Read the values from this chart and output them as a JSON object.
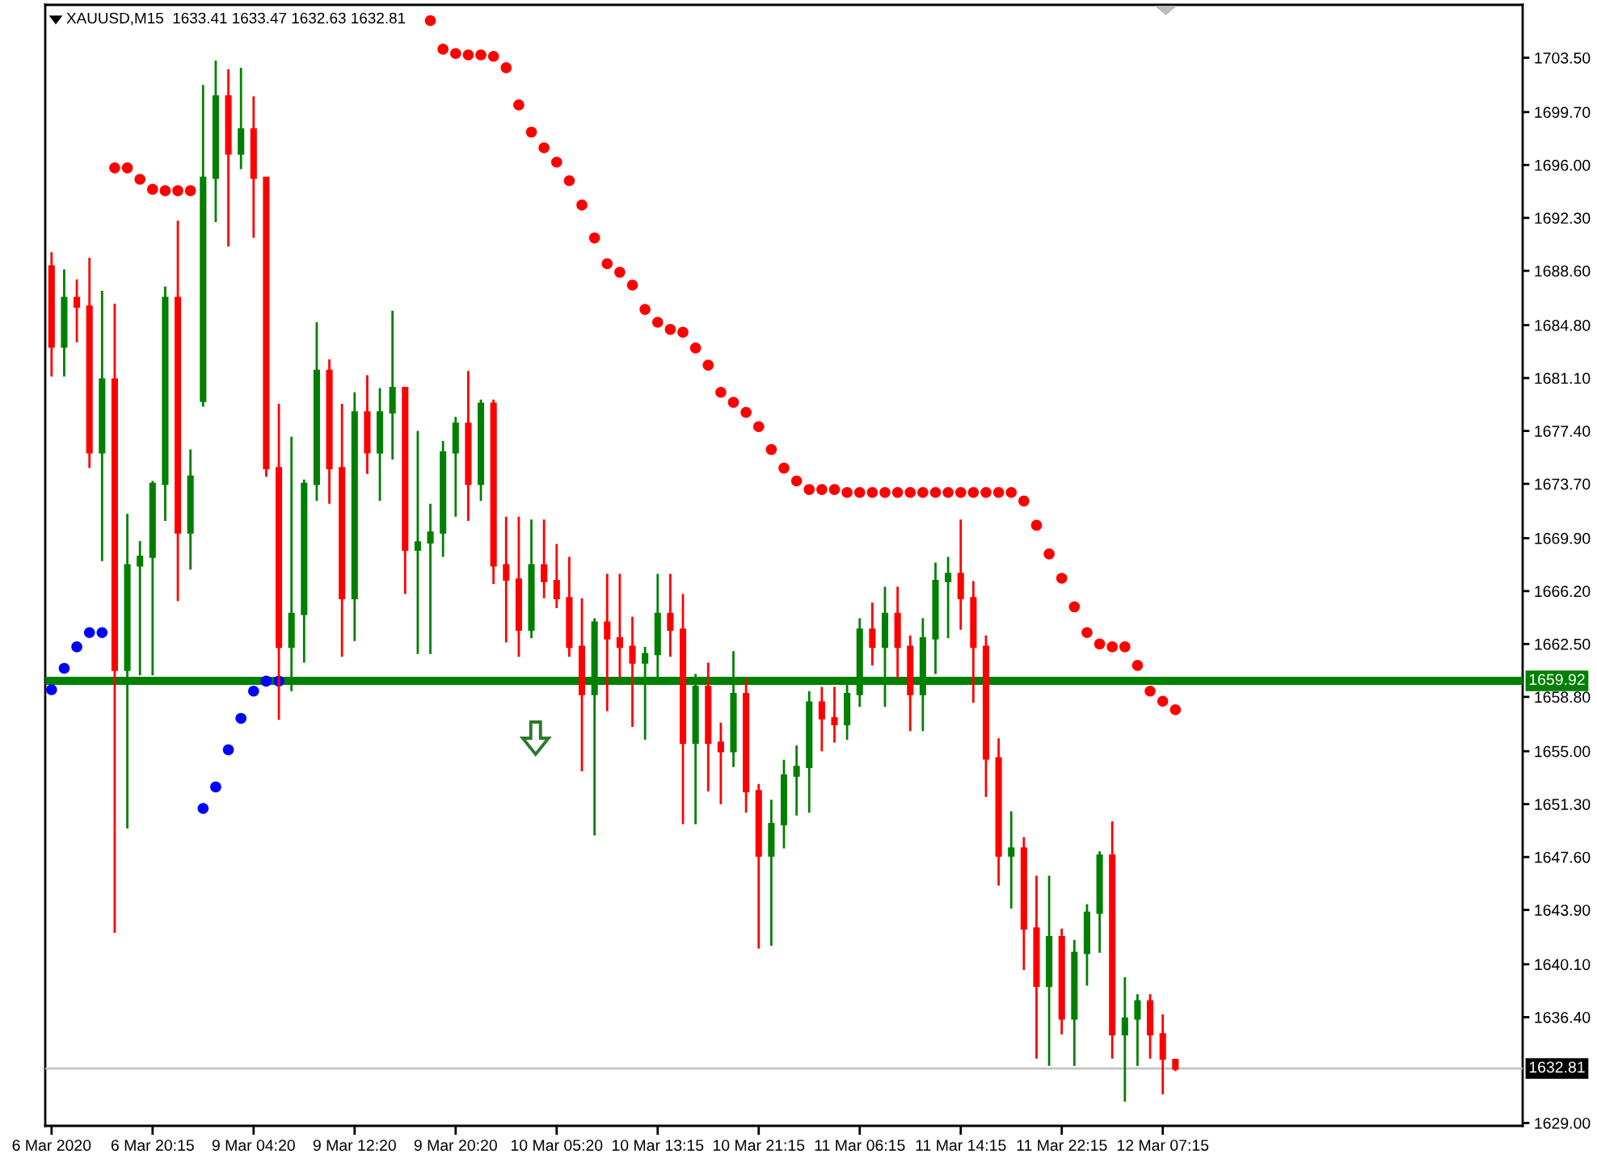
{
  "chart_data": {
    "type": "candlestick",
    "title": "XAUUSD,M15  1633.41 1633.47 1632.63 1632.81",
    "categories": [
      "6 Mar 2020",
      null,
      null,
      null,
      null,
      null,
      null,
      null,
      "6 Mar 20:15",
      null,
      null,
      null,
      null,
      null,
      null,
      null,
      "9 Mar 04:20",
      null,
      null,
      null,
      null,
      null,
      null,
      null,
      "9 Mar 12:20",
      null,
      null,
      null,
      null,
      null,
      null,
      null,
      "9 Mar 20:20",
      null,
      null,
      null,
      null,
      null,
      null,
      null,
      "10 Mar 05:20",
      null,
      null,
      null,
      null,
      null,
      null,
      null,
      "10 Mar 13:15",
      null,
      null,
      null,
      null,
      null,
      null,
      null,
      "10 Mar 21:15",
      null,
      null,
      null,
      null,
      null,
      null,
      null,
      "11 Mar 06:15",
      null,
      null,
      null,
      null,
      null,
      null,
      null,
      "11 Mar 14:15",
      null,
      null,
      null,
      null,
      null,
      null,
      null,
      "11 Mar 22:15",
      null,
      null,
      null,
      null,
      null,
      null,
      null,
      "12 Mar 07:15",
      null,
      null,
      null,
      null,
      null,
      null,
      null,
      null,
      null,
      null,
      null,
      null,
      null,
      null,
      null,
      null,
      null,
      null,
      null,
      null,
      null,
      null,
      null,
      null,
      null,
      null,
      null,
      null
    ],
    "ohlc": [
      [
        1688.9,
        1689.9,
        1681.2,
        1683.3
      ],
      [
        1683.3,
        1688.7,
        1681.2,
        1686.7
      ],
      [
        1686.7,
        1688.0,
        1683.6,
        1686.1
      ],
      [
        1686.1,
        1689.5,
        1674.8,
        1675.9
      ],
      [
        1675.9,
        1687.2,
        1668.3,
        1681.0
      ],
      [
        1681.0,
        1686.3,
        1642.3,
        1660.7
      ],
      [
        1660.7,
        1671.6,
        1649.6,
        1668.0
      ],
      [
        1668.0,
        1669.7,
        1660.3,
        1668.6
      ],
      [
        1668.6,
        1673.9,
        1660.3,
        1673.7
      ],
      [
        1673.7,
        1687.5,
        1671.1,
        1686.7
      ],
      [
        1686.7,
        1692.1,
        1665.5,
        1670.3
      ],
      [
        1670.3,
        1676.1,
        1667.7,
        1674.2
      ],
      [
        1679.5,
        1701.6,
        1679.1,
        1695.1
      ],
      [
        1695.1,
        1703.3,
        1692.0,
        1700.8
      ],
      [
        1700.8,
        1702.7,
        1690.3,
        1696.8
      ],
      [
        1696.8,
        1702.8,
        1695.7,
        1698.5
      ],
      [
        1698.5,
        1700.8,
        1690.9,
        1695.1
      ],
      [
        1695.1,
        1695.1,
        1674.2,
        1674.8
      ],
      [
        1674.8,
        1679.3,
        1657.2,
        1662.3
      ],
      [
        1662.3,
        1677.0,
        1659.2,
        1664.6
      ],
      [
        1664.6,
        1674.0,
        1661.2,
        1673.7
      ],
      [
        1673.7,
        1685.0,
        1672.5,
        1681.6
      ],
      [
        1681.6,
        1682.4,
        1672.3,
        1674.8
      ],
      [
        1674.8,
        1679.3,
        1661.6,
        1665.7
      ],
      [
        1665.7,
        1680.1,
        1662.7,
        1678.7
      ],
      [
        1678.7,
        1681.3,
        1674.4,
        1675.9
      ],
      [
        1675.9,
        1680.4,
        1672.5,
        1678.7
      ],
      [
        1678.7,
        1685.8,
        1675.4,
        1680.4
      ],
      [
        1680.4,
        1680.4,
        1666.0,
        1669.1
      ],
      [
        1669.1,
        1677.4,
        1661.8,
        1669.6
      ],
      [
        1669.6,
        1672.3,
        1661.8,
        1670.3
      ],
      [
        1670.3,
        1676.7,
        1668.6,
        1675.9
      ],
      [
        1675.9,
        1678.4,
        1671.4,
        1677.9
      ],
      [
        1677.9,
        1681.6,
        1671.1,
        1673.7
      ],
      [
        1673.7,
        1679.6,
        1672.5,
        1679.3
      ],
      [
        1679.3,
        1679.6,
        1666.7,
        1668.0
      ],
      [
        1668.0,
        1671.4,
        1662.6,
        1667.0
      ],
      [
        1667.0,
        1671.4,
        1661.6,
        1663.5
      ],
      [
        1663.5,
        1671.2,
        1662.9,
        1668.0
      ],
      [
        1668.0,
        1671.2,
        1665.7,
        1666.9
      ],
      [
        1666.9,
        1669.5,
        1665.0,
        1665.7
      ],
      [
        1665.7,
        1668.6,
        1661.6,
        1662.3
      ],
      [
        1662.3,
        1665.7,
        1653.6,
        1659.0
      ],
      [
        1659.0,
        1664.3,
        1649.1,
        1664.0
      ],
      [
        1664.0,
        1667.4,
        1657.8,
        1662.9
      ],
      [
        1662.9,
        1667.4,
        1660.1,
        1662.3
      ],
      [
        1662.3,
        1664.4,
        1656.7,
        1661.2
      ],
      [
        1661.2,
        1662.3,
        1655.8,
        1661.8
      ],
      [
        1661.8,
        1667.4,
        1660.1,
        1664.6
      ],
      [
        1664.6,
        1667.4,
        1661.6,
        1663.5
      ],
      [
        1663.5,
        1666.0,
        1649.9,
        1655.6
      ],
      [
        1655.6,
        1660.4,
        1649.9,
        1659.5
      ],
      [
        1659.5,
        1661.2,
        1652.2,
        1655.6
      ],
      [
        1655.6,
        1657.0,
        1651.3,
        1655.0
      ],
      [
        1655.0,
        1662.0,
        1653.9,
        1659.0
      ],
      [
        1659.0,
        1660.1,
        1650.7,
        1652.2
      ],
      [
        1652.2,
        1652.7,
        1641.2,
        1647.7
      ],
      [
        1647.7,
        1651.6,
        1641.4,
        1649.9
      ],
      [
        1649.9,
        1654.4,
        1648.2,
        1653.3
      ],
      [
        1653.3,
        1655.4,
        1650.5,
        1653.9
      ],
      [
        1653.9,
        1659.2,
        1650.7,
        1658.4
      ],
      [
        1658.4,
        1659.5,
        1655.0,
        1657.3
      ],
      [
        1657.3,
        1659.5,
        1655.6,
        1656.9
      ],
      [
        1656.9,
        1659.7,
        1655.8,
        1659.0
      ],
      [
        1659.0,
        1664.3,
        1658.1,
        1663.5
      ],
      [
        1663.5,
        1665.4,
        1661.0,
        1662.3
      ],
      [
        1662.3,
        1666.5,
        1658.1,
        1664.6
      ],
      [
        1664.6,
        1666.5,
        1660.1,
        1662.3
      ],
      [
        1662.3,
        1663.1,
        1656.4,
        1659.0
      ],
      [
        1659.0,
        1664.3,
        1656.4,
        1662.9
      ],
      [
        1662.9,
        1668.2,
        1660.4,
        1666.9
      ],
      [
        1666.9,
        1668.6,
        1662.9,
        1667.4
      ],
      [
        1667.4,
        1671.2,
        1663.5,
        1665.7
      ],
      [
        1665.7,
        1666.9,
        1658.4,
        1662.3
      ],
      [
        1662.3,
        1663.1,
        1651.8,
        1654.5
      ],
      [
        1654.5,
        1655.9,
        1645.6,
        1647.7
      ],
      [
        1647.7,
        1650.8,
        1644.0,
        1648.2
      ],
      [
        1648.2,
        1649.0,
        1639.7,
        1642.6
      ],
      [
        1642.6,
        1646.3,
        1633.5,
        1638.6
      ],
      [
        1638.6,
        1646.3,
        1633.0,
        1642.0
      ],
      [
        1642.0,
        1642.6,
        1635.2,
        1636.3
      ],
      [
        1636.3,
        1641.8,
        1633.0,
        1640.9
      ],
      [
        1640.9,
        1644.3,
        1638.6,
        1643.7
      ],
      [
        1643.7,
        1648.0,
        1640.9,
        1647.7
      ],
      [
        1647.7,
        1650.1,
        1633.5,
        1635.2
      ],
      [
        1635.2,
        1639.2,
        1630.5,
        1636.3
      ],
      [
        1636.3,
        1638.0,
        1633.0,
        1637.5
      ],
      [
        1637.5,
        1638.0,
        1633.5,
        1635.2
      ],
      [
        1635.2,
        1636.6,
        1631.0,
        1633.5
      ],
      [
        1633.41,
        1633.47,
        1632.63,
        1632.81
      ],
      null,
      null,
      null,
      null,
      null,
      null,
      null,
      null,
      null,
      null,
      null,
      null,
      null,
      null,
      null,
      null,
      null,
      null,
      null,
      null,
      null,
      null,
      null,
      null,
      null,
      null,
      null
    ],
    "colors": [
      "#ff0000",
      "#008000",
      "#ff0000",
      "#ff0000",
      "#008000",
      "#ff0000",
      "#008000",
      "#008000",
      "#008000",
      "#008000",
      "#ff0000",
      "#008000",
      "#008000",
      "#008000",
      "#ff0000",
      "#008000",
      "#ff0000",
      "#ff0000",
      "#ff0000",
      "#008000",
      "#008000",
      "#008000",
      "#ff0000",
      "#ff0000",
      "#008000",
      "#ff0000",
      "#008000",
      "#008000",
      "#ff0000",
      "#008000",
      "#008000",
      "#008000",
      "#008000",
      "#ff0000",
      "#008000",
      "#ff0000",
      "#ff0000",
      "#ff0000",
      "#008000",
      "#ff0000",
      "#ff0000",
      "#ff0000",
      "#ff0000",
      "#008000",
      "#ff0000",
      "#ff0000",
      "#ff0000",
      "#008000",
      "#008000",
      "#ff0000",
      "#ff0000",
      "#008000",
      "#ff0000",
      "#ff0000",
      "#008000",
      "#ff0000",
      "#ff0000",
      "#008000",
      "#008000",
      "#008000",
      "#008000",
      "#ff0000",
      "#ff0000",
      "#008000",
      "#008000",
      "#ff0000",
      "#008000",
      "#ff0000",
      "#ff0000",
      "#008000",
      "#008000",
      "#008000",
      "#ff0000",
      "#ff0000",
      "#ff0000",
      "#ff0000",
      "#008000",
      "#ff0000",
      "#ff0000",
      "#008000",
      "#ff0000",
      "#008000",
      "#008000",
      "#008000",
      "#ff0000",
      "#008000",
      "#008000",
      "#ff0000",
      "#ff0000",
      "#ff0000",
      null,
      null,
      null,
      null,
      null,
      null,
      null,
      null,
      null,
      null,
      null,
      null,
      null,
      null,
      null,
      null,
      null,
      null,
      null,
      null,
      null,
      null,
      null,
      null,
      null,
      null,
      null
    ],
    "series": [
      {
        "type": "scatter",
        "color": "#ff0000",
        "values": [
          null,
          null,
          null,
          null,
          null,
          1695.8,
          1695.8,
          1695.0,
          1694.3,
          1694.2,
          1694.2,
          1694.2,
          null,
          null,
          null,
          null,
          null,
          null,
          null,
          null,
          null,
          null,
          null,
          null,
          null,
          null,
          null,
          null,
          null,
          null,
          1706.1,
          1704.1,
          1703.8,
          1703.7,
          1703.7,
          1703.6,
          1702.8,
          1700.2,
          1698.3,
          1697.2,
          1696.2,
          1694.9,
          1693.2,
          1690.9,
          1689.1,
          1688.5,
          1687.6,
          1685.9,
          1685.0,
          1684.5,
          1684.3,
          1683.2,
          1682.0,
          1680.1,
          1679.4,
          1678.7,
          1677.7,
          1676.1,
          1674.8,
          1673.9,
          1673.3,
          1673.3,
          1673.3,
          1673.1,
          1673.1,
          1673.1,
          1673.1,
          1673.1,
          1673.1,
          1673.1,
          1673.1,
          1673.1,
          1673.1,
          1673.1,
          1673.1,
          1673.1,
          1673.1,
          1672.5,
          1670.8,
          1668.8,
          1667.1,
          1665.1,
          1663.3,
          1662.5,
          1662.3,
          1662.3,
          1661.0,
          1659.2,
          1658.5,
          1657.9,
          null,
          null,
          null,
          null,
          null,
          null,
          null,
          null,
          null,
          null,
          null,
          null,
          null,
          null,
          null,
          null,
          null,
          null,
          null,
          null,
          null,
          null,
          null,
          null,
          null,
          null,
          null
        ]
      },
      {
        "type": "scatter",
        "color": "#0000ff",
        "values": [
          1659.3,
          1660.8,
          1662.3,
          1663.3,
          1663.3,
          null,
          null,
          null,
          null,
          null,
          null,
          null,
          1651.0,
          1652.5,
          1655.1,
          1657.3,
          1659.2,
          1659.9,
          1659.9,
          null,
          null,
          null,
          null,
          null,
          null,
          null,
          null,
          null,
          null,
          null,
          null,
          null,
          null,
          null,
          null,
          null,
          null,
          null,
          null,
          null,
          null,
          null,
          null,
          null,
          null,
          null,
          null,
          null,
          null,
          null,
          null,
          null,
          null,
          null,
          null,
          null,
          null,
          null,
          null,
          null,
          null,
          null,
          null,
          null,
          null,
          null,
          null,
          null,
          null,
          null,
          null,
          null,
          null,
          null,
          null,
          null,
          null,
          null,
          null,
          null,
          null,
          null,
          null,
          null,
          null,
          null,
          null,
          null,
          null,
          null,
          null,
          null,
          null,
          null,
          null,
          null,
          null,
          null,
          null,
          null,
          null,
          null,
          null,
          null,
          null,
          null,
          null,
          null,
          null,
          null,
          null,
          null,
          null,
          null,
          null,
          null,
          null
        ]
      }
    ],
    "marker": "circle",
    "ylim": [
      1628.8,
      1707.2
    ],
    "yticks": [
      {
        "value": 1703.5,
        "label": "1703.50"
      },
      {
        "value": 1699.7,
        "label": "1699.70"
      },
      {
        "value": 1696.0,
        "label": "1696.00"
      },
      {
        "value": 1692.3,
        "label": "1692.30"
      },
      {
        "value": 1688.6,
        "label": "1688.60"
      },
      {
        "value": 1684.8,
        "label": "1684.80"
      },
      {
        "value": 1681.1,
        "label": "1681.10"
      },
      {
        "value": 1677.4,
        "label": "1677.40"
      },
      {
        "value": 1673.7,
        "label": "1673.70"
      },
      {
        "value": 1669.9,
        "label": "1669.90"
      },
      {
        "value": 1666.2,
        "label": "1666.20"
      },
      {
        "value": 1662.5,
        "label": "1662.50"
      },
      {
        "value": 1658.8,
        "label": "1658.80"
      },
      {
        "value": 1655.0,
        "label": "1655.00"
      },
      {
        "value": 1651.3,
        "label": "1651.30"
      },
      {
        "value": 1647.6,
        "label": "1647.60"
      },
      {
        "value": 1643.9,
        "label": "1643.90"
      },
      {
        "value": 1640.1,
        "label": "1640.10"
      },
      {
        "value": 1636.4,
        "label": "1636.40"
      },
      {
        "value": 1629.0,
        "label": "1629.00"
      }
    ],
    "ref_lines": [
      {
        "axis": "y",
        "value": 1659.92,
        "label": "1659.92",
        "color": "#008000",
        "line_style": "solid"
      },
      {
        "axis": "y",
        "value": 1632.81,
        "label": "1632.81",
        "color": "#c0c0c0",
        "line_style": "solid"
      }
    ]
  }
}
